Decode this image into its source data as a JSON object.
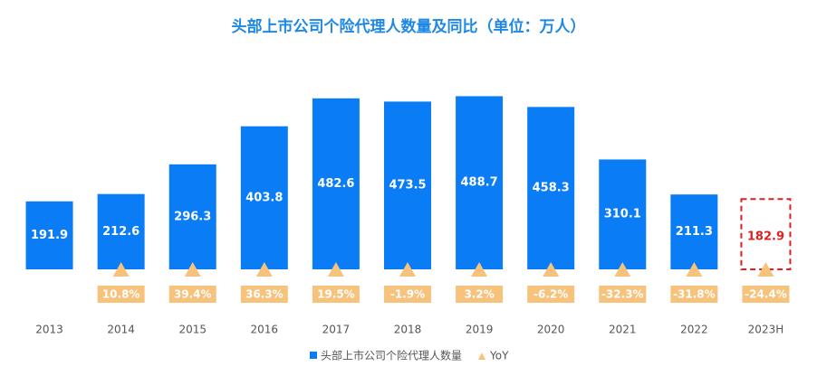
{
  "chart_data": {
    "type": "bar",
    "title": "头部上市公司个险代理人数量及同比（单位：万人）",
    "categories": [
      "2013",
      "2014",
      "2015",
      "2016",
      "2017",
      "2018",
      "2019",
      "2020",
      "2021",
      "2022",
      "2023H"
    ],
    "series": [
      {
        "name": "头部上市公司个险代理人数量",
        "color": "#0a7cf5",
        "values": [
          191.9,
          212.6,
          296.3,
          403.8,
          482.6,
          473.5,
          488.7,
          458.3,
          310.1,
          211.3,
          182.9
        ]
      },
      {
        "name": "YoY",
        "color": "#f7c27c",
        "axis": "y2",
        "values": [
          null,
          10.8,
          39.4,
          36.3,
          19.5,
          -1.9,
          3.2,
          -6.2,
          -32.3,
          -31.8,
          -24.4
        ],
        "value_labels": [
          null,
          "10.8%",
          "39.4%",
          "36.3%",
          "19.5%",
          "-1.9%",
          "3.2%",
          "-6.2%",
          "-32.3%",
          "-31.8%",
          "-24.4%"
        ]
      }
    ],
    "highlight_index": 10,
    "highlight_color": "#e02020",
    "ylim": [
      0,
      500
    ]
  }
}
